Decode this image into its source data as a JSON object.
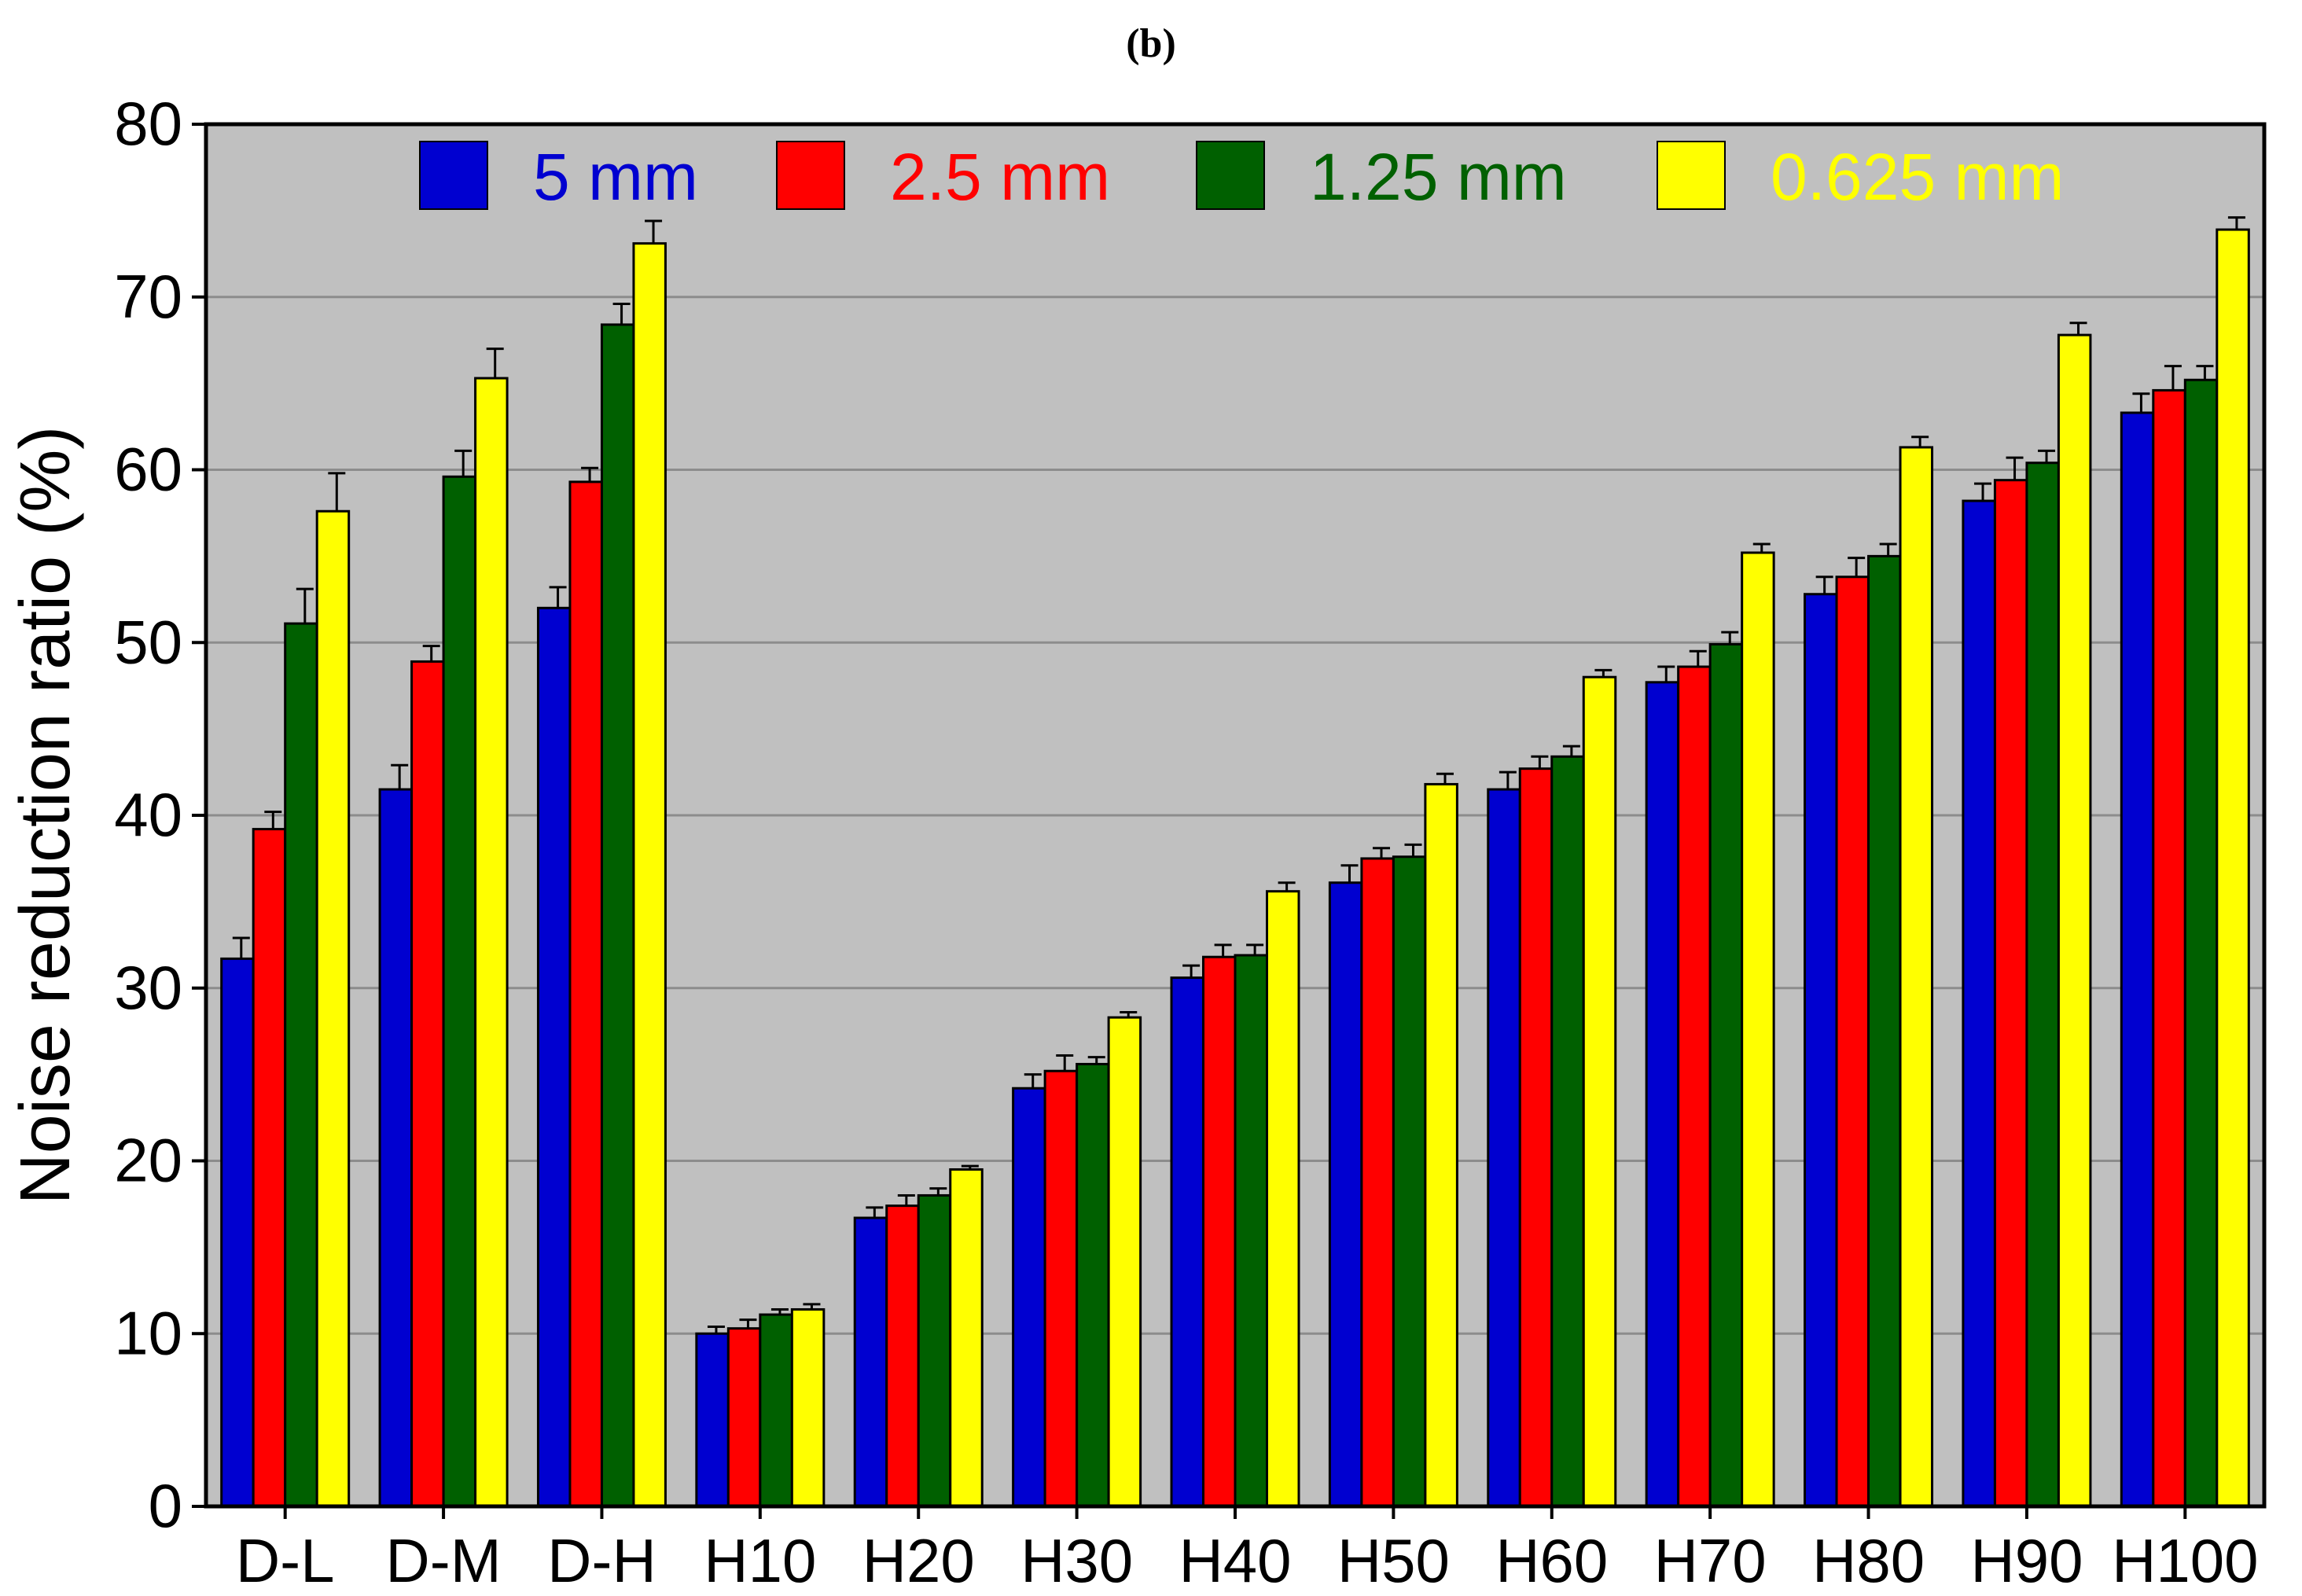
{
  "panel_label": "(b)",
  "chart_data": {
    "type": "bar",
    "title": "",
    "xlabel": "",
    "ylabel": "Noise reduction ratio (%)",
    "ylim": [
      0,
      80
    ],
    "yticks": [
      0,
      10,
      20,
      30,
      40,
      50,
      60,
      70,
      80
    ],
    "grid": "horizontal",
    "legend_position": "top",
    "categories": [
      "D-L",
      "D-M",
      "D-H",
      "H10",
      "H20",
      "H30",
      "H40",
      "H50",
      "H60",
      "H70",
      "H80",
      "H90",
      "H100"
    ],
    "series": [
      {
        "name": "5 mm",
        "color": "#0000d0",
        "values": [
          31.7,
          41.5,
          52.0,
          10.0,
          16.7,
          24.2,
          30.6,
          36.1,
          41.5,
          47.7,
          52.8,
          58.2,
          63.3
        ],
        "errors": [
          1.2,
          1.4,
          1.2,
          0.4,
          0.6,
          0.8,
          0.7,
          1.0,
          1.0,
          0.9,
          1.0,
          1.0,
          1.1
        ]
      },
      {
        "name": "2.5 mm",
        "color": "#ff0000",
        "values": [
          39.2,
          48.9,
          59.3,
          10.3,
          17.4,
          25.2,
          31.8,
          37.5,
          42.7,
          48.6,
          53.8,
          59.4,
          64.6
        ],
        "errors": [
          1.0,
          0.9,
          0.8,
          0.5,
          0.6,
          0.9,
          0.7,
          0.6,
          0.7,
          0.9,
          1.1,
          1.3,
          1.4
        ]
      },
      {
        "name": "1.25 mm",
        "color": "#006000",
        "values": [
          51.1,
          59.6,
          68.4,
          11.1,
          18.0,
          25.6,
          31.9,
          37.6,
          43.4,
          49.9,
          55.0,
          60.4,
          65.2
        ],
        "errors": [
          2.0,
          1.5,
          1.2,
          0.3,
          0.4,
          0.4,
          0.6,
          0.7,
          0.6,
          0.7,
          0.7,
          0.7,
          0.8
        ]
      },
      {
        "name": "0.625 mm",
        "color": "#ffff00",
        "values": [
          57.6,
          65.3,
          73.1,
          11.4,
          19.5,
          28.3,
          35.6,
          41.8,
          48.0,
          55.2,
          61.3,
          67.8,
          73.9
        ],
        "errors": [
          2.2,
          1.7,
          1.3,
          0.3,
          0.2,
          0.3,
          0.5,
          0.6,
          0.4,
          0.5,
          0.6,
          0.7,
          0.7
        ]
      }
    ]
  }
}
